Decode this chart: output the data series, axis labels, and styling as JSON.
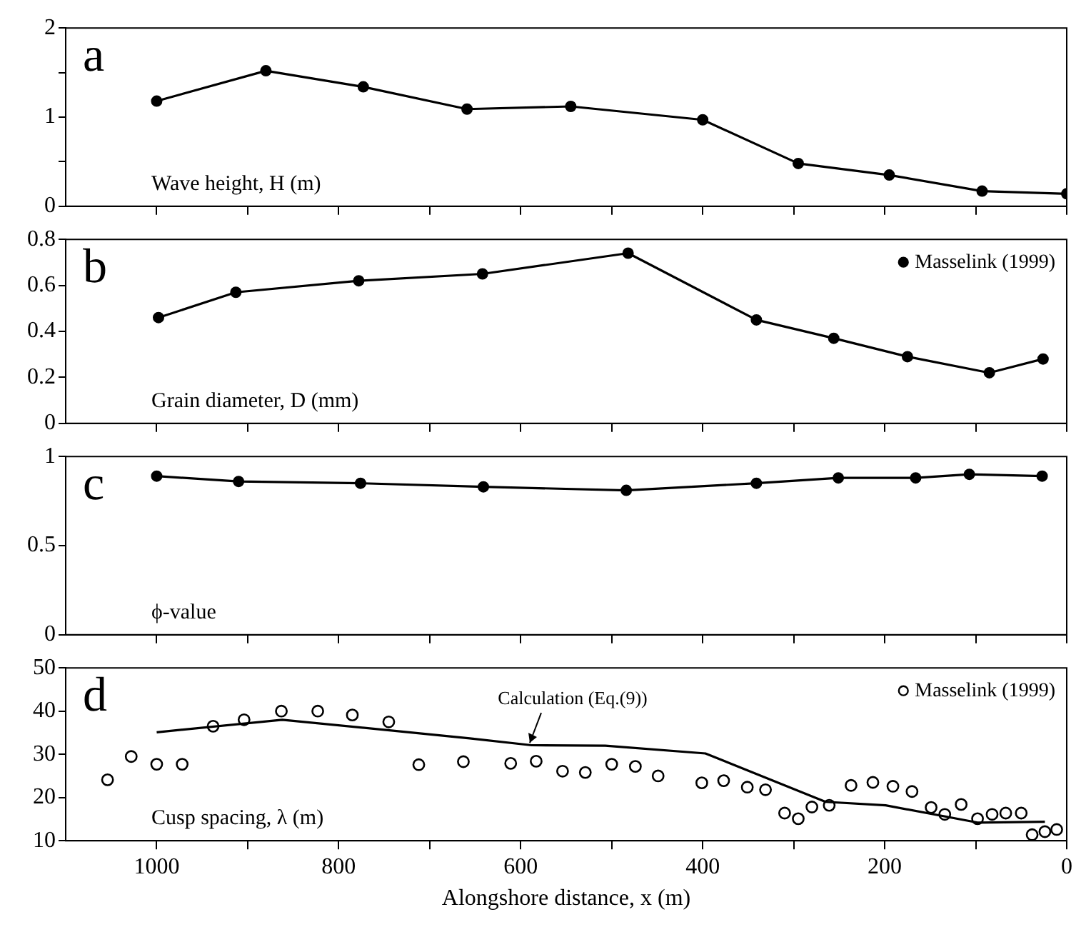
{
  "chart_data": [
    {
      "type": "line",
      "title": "a",
      "annotations": [
        "Wave height, H (m)"
      ],
      "xlim": [
        1100,
        0
      ],
      "xticks": [
        {
          "value": 1000,
          "label": null
        },
        {
          "value": 900,
          "label": null
        },
        {
          "value": 800,
          "label": null
        },
        {
          "value": 700,
          "label": null
        },
        {
          "value": 600,
          "label": null
        },
        {
          "value": 500,
          "label": null
        },
        {
          "value": 400,
          "label": null
        },
        {
          "value": 300,
          "label": null
        },
        {
          "value": 200,
          "label": null
        },
        {
          "value": 100,
          "label": null
        },
        {
          "value": 0,
          "label": null
        }
      ],
      "ylim": [
        0,
        2
      ],
      "yticks": [
        0,
        {
          "value": 0.5,
          "label": null
        },
        1,
        {
          "value": 1.5,
          "label": null
        },
        2
      ],
      "tick_labels": "y",
      "marker": "circle",
      "grid": false,
      "series": [
        {
          "color": "#000000",
          "x": [
            1000,
            880,
            773,
            659,
            545,
            400,
            295,
            195,
            93,
            0
          ],
          "values": [
            1.18,
            1.52,
            1.34,
            1.09,
            1.12,
            0.97,
            0.48,
            0.35,
            0.17,
            0.14
          ]
        }
      ]
    },
    {
      "type": "line",
      "title": "b",
      "annotations": [
        "Grain diameter, D (mm)"
      ],
      "xlim": [
        1100,
        0
      ],
      "xticks": [
        {
          "value": 1000,
          "label": null
        },
        {
          "value": 900,
          "label": null
        },
        {
          "value": 800,
          "label": null
        },
        {
          "value": 700,
          "label": null
        },
        {
          "value": 600,
          "label": null
        },
        {
          "value": 500,
          "label": null
        },
        {
          "value": 400,
          "label": null
        },
        {
          "value": 300,
          "label": null
        },
        {
          "value": 200,
          "label": null
        },
        {
          "value": 100,
          "label": null
        },
        {
          "value": 0,
          "label": null
        }
      ],
      "ylim": [
        0,
        0.8
      ],
      "yticks": [
        0,
        0.2,
        0.4,
        0.6,
        0.8
      ],
      "tick_labels": "y",
      "marker": "circle",
      "legend": "top right",
      "grid": false,
      "series": [
        {
          "name": "Masselink (1999)",
          "color": "#000000",
          "x": [
            998,
            913,
            778,
            642,
            482,
            341,
            256,
            175,
            85,
            26
          ],
          "values": [
            0.46,
            0.57,
            0.62,
            0.65,
            0.74,
            0.45,
            0.37,
            0.29,
            0.22,
            0.28
          ]
        }
      ]
    },
    {
      "type": "line",
      "title": "c",
      "annotations": [
        "ϕ-value"
      ],
      "xlim": [
        1100,
        0
      ],
      "xticks": [
        {
          "value": 1000,
          "label": null
        },
        {
          "value": 900,
          "label": null
        },
        {
          "value": 800,
          "label": null
        },
        {
          "value": 700,
          "label": null
        },
        {
          "value": 600,
          "label": null
        },
        {
          "value": 500,
          "label": null
        },
        {
          "value": 400,
          "label": null
        },
        {
          "value": 300,
          "label": null
        },
        {
          "value": 200,
          "label": null
        },
        {
          "value": 100,
          "label": null
        },
        {
          "value": 0,
          "label": null
        }
      ],
      "ylim": [
        0,
        1
      ],
      "yticks": [
        0,
        0.5,
        1
      ],
      "tick_labels": "y",
      "marker": "circle",
      "grid": false,
      "series": [
        {
          "color": "#000000",
          "x": [
            1000,
            910,
            776,
            641,
            484,
            341,
            251,
            166,
            107,
            27
          ],
          "values": [
            0.89,
            0.86,
            0.85,
            0.83,
            0.81,
            0.85,
            0.88,
            0.88,
            0.9,
            0.89
          ]
        }
      ]
    },
    {
      "type": "line",
      "title": "d",
      "xlabel": "Alongshore distance, x (m)",
      "annotations": [
        "Cusp spacing, λ (m)",
        {
          "text": "Calculation (Eq.(9))",
          "x": 590,
          "y": 32
        }
      ],
      "xlim": [
        1100,
        0
      ],
      "xticks": [
        1000,
        {
          "value": 900,
          "label": null
        },
        800,
        {
          "value": 700,
          "label": null
        },
        600,
        {
          "value": 500,
          "label": null
        },
        400,
        {
          "value": 300,
          "label": null
        },
        200,
        {
          "value": 100,
          "label": null
        },
        0
      ],
      "ylim": [
        10,
        50
      ],
      "yticks": [
        10,
        20,
        30,
        40,
        50
      ],
      "legend": "top right",
      "grid": false,
      "series": [
        {
          "marker": "none",
          "color": "#000000",
          "x": [
            1000,
            862,
            656,
            588,
            507,
            397,
            265,
            199,
            98,
            24
          ],
          "values": [
            35.1,
            38.0,
            33.7,
            32.1,
            32.0,
            30.2,
            19.0,
            18.2,
            14.2,
            14.4
          ]
        },
        {
          "type": "scatter",
          "marker": "circle",
          "name": "Masselink (1999)",
          "color": "#000000",
          "x": [
            1054,
            1028,
            1000,
            972,
            938,
            904,
            863,
            823,
            785,
            745,
            712,
            663,
            611,
            583,
            554,
            529,
            500,
            474,
            449,
            401,
            377,
            351,
            331,
            310,
            295,
            280,
            261,
            237,
            213,
            191,
            170,
            149,
            134,
            116,
            98,
            82,
            67,
            50,
            38,
            24,
            11
          ],
          "values": [
            24.1,
            29.5,
            27.7,
            27.7,
            36.5,
            38.0,
            40.0,
            40.0,
            39.1,
            37.5,
            27.6,
            28.3,
            27.9,
            28.4,
            26.1,
            25.8,
            27.7,
            27.2,
            25.0,
            23.4,
            23.9,
            22.4,
            21.8,
            16.4,
            15.1,
            17.8,
            18.2,
            22.8,
            23.5,
            22.6,
            21.4,
            17.7,
            16.1,
            18.4,
            15.1,
            16.1,
            16.4,
            16.4,
            11.4,
            12.1,
            12.6
          ]
        }
      ]
    }
  ]
}
